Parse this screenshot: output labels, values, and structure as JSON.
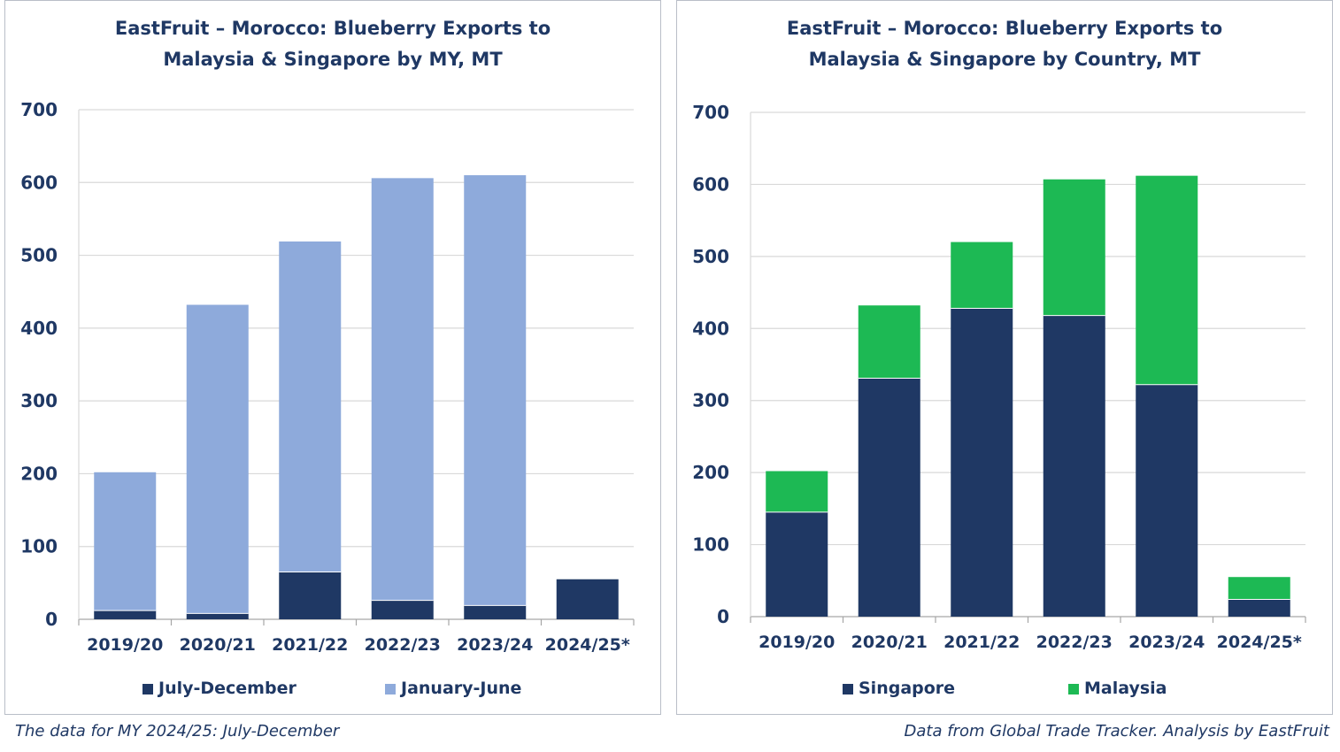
{
  "chart_data": [
    {
      "type": "bar",
      "stacked": true,
      "title_lines": [
        "EastFruit – Morocco: Blueberry Exports to",
        "Malaysia & Singapore by MY, MT"
      ],
      "categories": [
        "2019/20",
        "2020/21",
        "2021/22",
        "2022/23",
        "2023/24",
        "2024/25*"
      ],
      "ylim": [
        0,
        700
      ],
      "yticks": [
        0,
        100,
        200,
        300,
        400,
        500,
        600,
        700
      ],
      "grid": true,
      "legend_position": "bottom",
      "series": [
        {
          "name": "July-December",
          "color": "#1f3864",
          "values": [
            12,
            8,
            65,
            26,
            19,
            55
          ]
        },
        {
          "name": "January-June",
          "color": "#8eaadb",
          "values": [
            190,
            424,
            454,
            580,
            591,
            0
          ]
        }
      ]
    },
    {
      "type": "bar",
      "stacked": true,
      "title_lines": [
        "EastFruit – Morocco: Blueberry Exports to",
        "Malaysia & Singapore by Country, MT"
      ],
      "categories": [
        "2019/20",
        "2020/21",
        "2021/22",
        "2022/23",
        "2023/24",
        "2024/25*"
      ],
      "ylim": [
        0,
        700
      ],
      "yticks": [
        0,
        100,
        200,
        300,
        400,
        500,
        600,
        700
      ],
      "grid": true,
      "legend_position": "bottom",
      "series": [
        {
          "name": "Singapore",
          "color": "#1f3864",
          "values": [
            145,
            331,
            428,
            418,
            322,
            24
          ]
        },
        {
          "name": "Malaysia",
          "color": "#1db954",
          "values": [
            57,
            101,
            92,
            189,
            290,
            31
          ]
        }
      ]
    }
  ],
  "footer": {
    "left_note": "The data for MY 2024/25: July-December",
    "right_note": "Data from Global Trade Tracker. Analysis by  EastFruit"
  }
}
